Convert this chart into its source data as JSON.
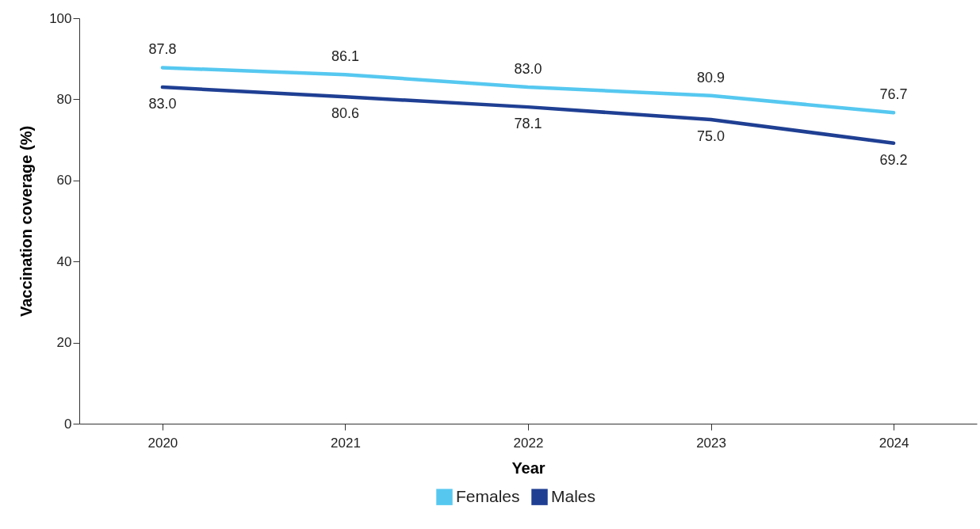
{
  "chart_data": {
    "type": "line",
    "xlabel": "Year",
    "ylabel": "Vaccination coverage (%)",
    "categories": [
      "2020",
      "2021",
      "2022",
      "2023",
      "2024"
    ],
    "series": [
      {
        "name": "Females",
        "color": "#56c8f0",
        "values": [
          87.8,
          86.1,
          83.0,
          80.9,
          76.7
        ],
        "value_labels": [
          "87.8",
          "86.1",
          "83.0",
          "80.9",
          "76.7"
        ]
      },
      {
        "name": "Males",
        "color": "#1f3f93",
        "values": [
          83.0,
          80.6,
          78.1,
          75.0,
          69.2
        ],
        "value_labels": [
          "83.0",
          "80.6",
          "78.1",
          "75.0",
          "69.2"
        ]
      }
    ],
    "ylim": [
      0,
      100
    ],
    "yticks": [
      0,
      20,
      40,
      60,
      80,
      100
    ],
    "grid": false,
    "legend": "bottom",
    "marker": "none",
    "line_style": "solid"
  }
}
